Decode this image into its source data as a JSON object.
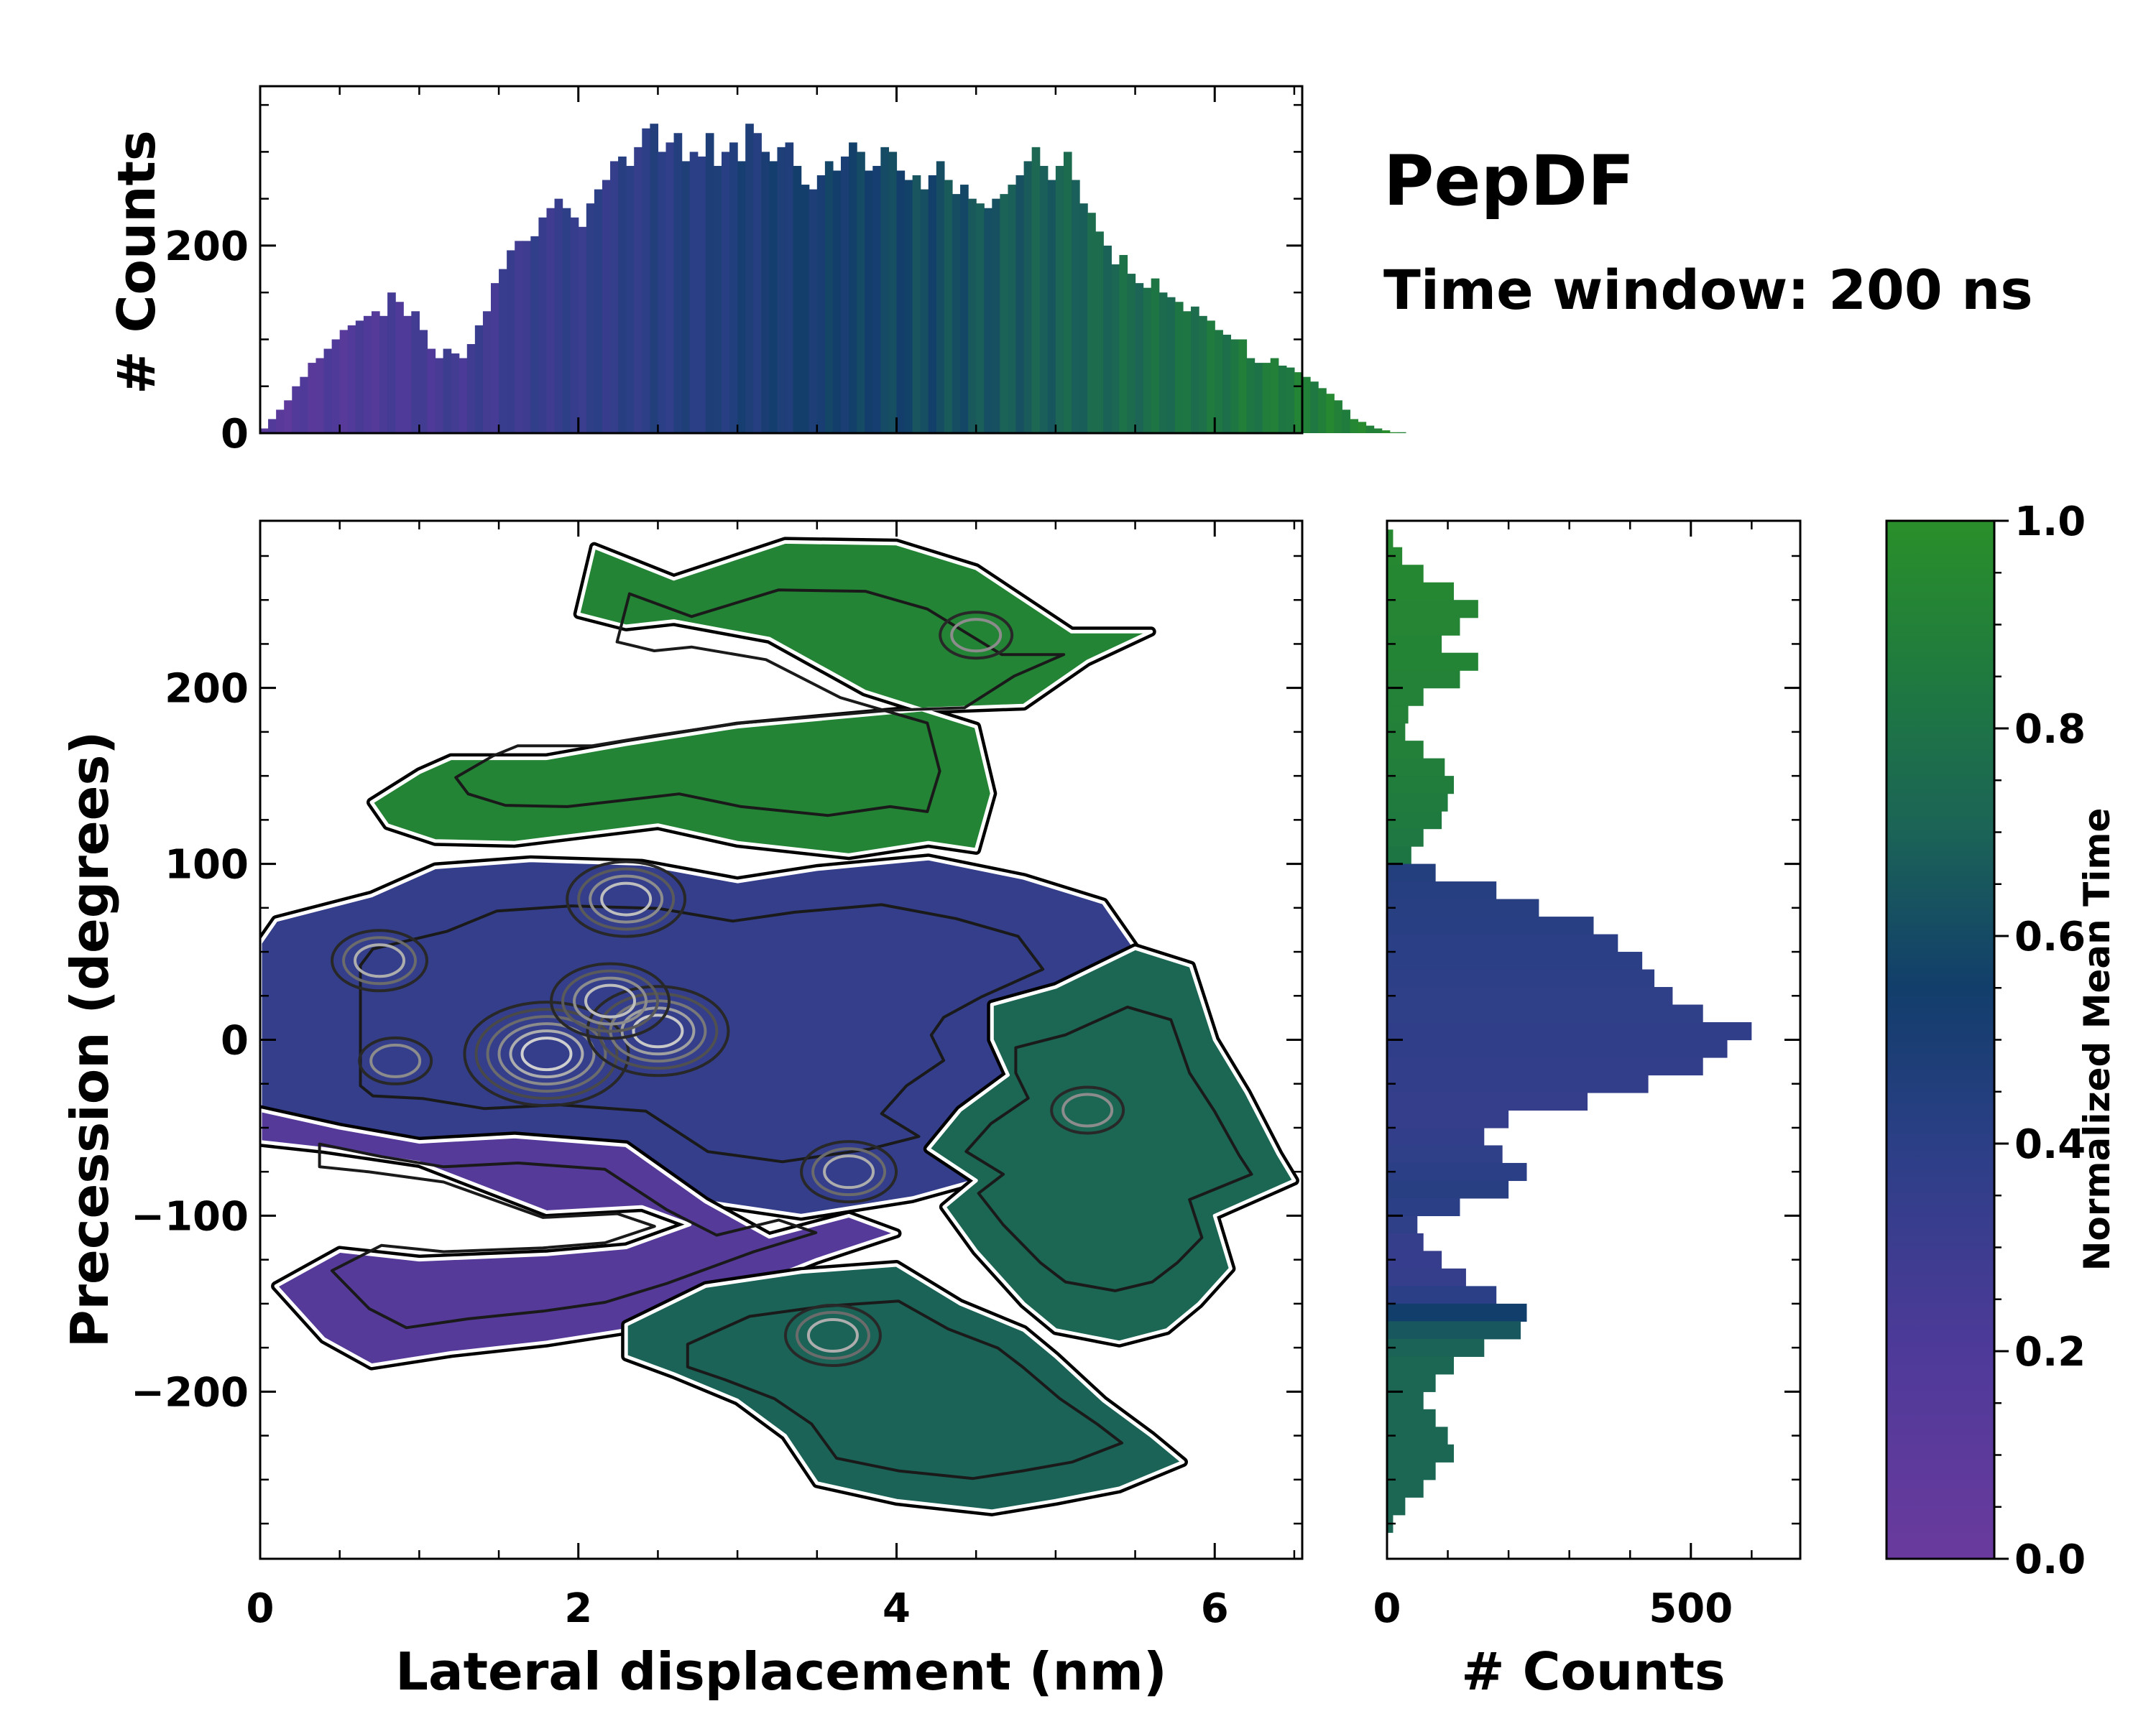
{
  "chart_data": {
    "type": "heatmap",
    "title": "PepDF",
    "subtitle": "Time window: 200 ns",
    "main": {
      "xlabel": "Lateral displacement (nm)",
      "ylabel": "Precession (degrees)",
      "xlim": [
        0,
        6.55
      ],
      "ylim": [
        -295,
        295
      ],
      "xticks": [
        0,
        2,
        4,
        6
      ],
      "yticks": [
        -200,
        -100,
        0,
        100,
        200
      ],
      "ytick_labels": [
        "−200",
        "−100",
        "0",
        "100",
        "200"
      ],
      "regions": [
        {
          "name": "upper-green",
          "mean_time": 0.92,
          "polygon": [
            [
              2.1,
              280
            ],
            [
              2.6,
              262
            ],
            [
              3.3,
              283
            ],
            [
              4.0,
              282
            ],
            [
              4.5,
              268
            ],
            [
              5.1,
              232
            ],
            [
              5.6,
              232
            ],
            [
              5.2,
              215
            ],
            [
              4.8,
              190
            ],
            [
              4.2,
              188
            ],
            [
              3.6,
              183
            ],
            [
              3.0,
              178
            ],
            [
              2.3,
              168
            ],
            [
              1.8,
              160
            ],
            [
              1.2,
              160
            ],
            [
              1.0,
              152
            ],
            [
              0.7,
              135
            ],
            [
              0.8,
              122
            ],
            [
              1.1,
              113
            ],
            [
              1.6,
              112
            ],
            [
              2.5,
              122
            ],
            [
              3.0,
              112
            ],
            [
              3.7,
              105
            ],
            [
              4.2,
              112
            ],
            [
              4.5,
              108
            ],
            [
              4.6,
              140
            ],
            [
              4.5,
              178
            ],
            [
              3.8,
              198
            ],
            [
              3.2,
              228
            ],
            [
              2.6,
              238
            ],
            [
              2.3,
              235
            ],
            [
              2.0,
              242
            ]
          ]
        },
        {
          "name": "middle-blue",
          "mean_time": 0.35,
          "polygon": [
            [
              0.0,
              55
            ],
            [
              0.1,
              68
            ],
            [
              0.7,
              82
            ],
            [
              1.1,
              98
            ],
            [
              1.7,
              102
            ],
            [
              2.4,
              100
            ],
            [
              3.0,
              90
            ],
            [
              3.5,
              97
            ],
            [
              4.2,
              103
            ],
            [
              4.8,
              92
            ],
            [
              5.3,
              78
            ],
            [
              5.5,
              52
            ],
            [
              5.0,
              30
            ],
            [
              4.7,
              14
            ],
            [
              4.6,
              0
            ],
            [
              4.7,
              -20
            ],
            [
              4.4,
              -40
            ],
            [
              4.2,
              -62
            ],
            [
              4.5,
              -80
            ],
            [
              4.1,
              -90
            ],
            [
              3.4,
              -100
            ],
            [
              2.8,
              -92
            ],
            [
              2.3,
              -60
            ],
            [
              1.6,
              -55
            ],
            [
              1.0,
              -58
            ],
            [
              0.5,
              -50
            ],
            [
              0.1,
              -48
            ],
            [
              0.0,
              -40
            ]
          ]
        },
        {
          "name": "lower-purple",
          "mean_time": 0.15,
          "polygon": [
            [
              0.0,
              -40
            ],
            [
              0.5,
              -50
            ],
            [
              1.0,
              -58
            ],
            [
              1.6,
              -55
            ],
            [
              2.3,
              -60
            ],
            [
              2.8,
              -92
            ],
            [
              3.2,
              -112
            ],
            [
              3.7,
              -100
            ],
            [
              4.0,
              -110
            ],
            [
              3.5,
              -125
            ],
            [
              2.8,
              -150
            ],
            [
              2.3,
              -165
            ],
            [
              1.8,
              -172
            ],
            [
              1.2,
              -178
            ],
            [
              0.7,
              -185
            ],
            [
              0.4,
              -170
            ],
            [
              0.1,
              -140
            ],
            [
              0.5,
              -120
            ],
            [
              1.0,
              -125
            ],
            [
              1.8,
              -122
            ],
            [
              2.3,
              -118
            ],
            [
              2.7,
              -105
            ],
            [
              2.4,
              -95
            ],
            [
              1.8,
              -98
            ],
            [
              1.0,
              -70
            ],
            [
              0.4,
              -62
            ],
            [
              0.0,
              -58
            ]
          ]
        },
        {
          "name": "lower-teal",
          "mean_time": 0.7,
          "polygon": [
            [
              2.3,
              -162
            ],
            [
              2.8,
              -140
            ],
            [
              3.4,
              -132
            ],
            [
              4.0,
              -128
            ],
            [
              4.4,
              -150
            ],
            [
              4.8,
              -165
            ],
            [
              5.0,
              -180
            ],
            [
              5.3,
              -205
            ],
            [
              5.6,
              -225
            ],
            [
              5.8,
              -240
            ],
            [
              5.4,
              -255
            ],
            [
              5.0,
              -262
            ],
            [
              4.6,
              -268
            ],
            [
              4.0,
              -262
            ],
            [
              3.5,
              -252
            ],
            [
              3.3,
              -225
            ],
            [
              3.0,
              -205
            ],
            [
              2.6,
              -190
            ],
            [
              2.3,
              -180
            ]
          ]
        },
        {
          "name": "right-teal",
          "mean_time": 0.72,
          "polygon": [
            [
              4.6,
              20
            ],
            [
              5.0,
              30
            ],
            [
              5.5,
              52
            ],
            [
              5.85,
              42
            ],
            [
              6.0,
              0
            ],
            [
              6.2,
              -30
            ],
            [
              6.4,
              -65
            ],
            [
              6.5,
              -80
            ],
            [
              6.0,
              -100
            ],
            [
              6.1,
              -130
            ],
            [
              5.9,
              -150
            ],
            [
              5.7,
              -165
            ],
            [
              5.4,
              -172
            ],
            [
              5.0,
              -165
            ],
            [
              4.8,
              -150
            ],
            [
              4.5,
              -120
            ],
            [
              4.3,
              -95
            ],
            [
              4.5,
              -80
            ],
            [
              4.2,
              -62
            ],
            [
              4.4,
              -40
            ],
            [
              4.7,
              -20
            ],
            [
              4.6,
              0
            ]
          ]
        }
      ],
      "hotspots": [
        {
          "x": 1.8,
          "y": -8,
          "peak": 1.0
        },
        {
          "x": 2.5,
          "y": 5,
          "peak": 0.85
        },
        {
          "x": 2.2,
          "y": 22,
          "peak": 0.7
        },
        {
          "x": 2.3,
          "y": 80,
          "peak": 0.6
        },
        {
          "x": 0.75,
          "y": 45,
          "peak": 0.45
        },
        {
          "x": 3.7,
          "y": -75,
          "peak": 0.55
        },
        {
          "x": 3.6,
          "y": -168,
          "peak": 0.5
        },
        {
          "x": 0.85,
          "y": -12,
          "peak": 0.4
        },
        {
          "x": 4.5,
          "y": 230,
          "peak": 0.4
        },
        {
          "x": 5.2,
          "y": -40,
          "peak": 0.35
        }
      ]
    },
    "top_histogram": {
      "ylabel": "# Counts",
      "ylim": [
        0,
        370
      ],
      "yticks": [
        0,
        200
      ],
      "bin_start": 0.0,
      "bin_width": 0.05,
      "values": [
        5,
        15,
        25,
        35,
        50,
        60,
        75,
        80,
        90,
        100,
        110,
        115,
        120,
        125,
        130,
        125,
        150,
        140,
        125,
        130,
        110,
        90,
        80,
        90,
        85,
        80,
        95,
        115,
        130,
        160,
        175,
        195,
        205,
        205,
        210,
        230,
        240,
        250,
        240,
        230,
        220,
        245,
        260,
        270,
        290,
        295,
        285,
        305,
        325,
        330,
        300,
        310,
        320,
        290,
        300,
        295,
        320,
        285,
        300,
        310,
        290,
        330,
        320,
        300,
        290,
        305,
        310,
        285,
        265,
        260,
        275,
        290,
        280,
        295,
        310,
        300,
        280,
        285,
        305,
        300,
        280,
        270,
        275,
        260,
        275,
        290,
        270,
        255,
        265,
        250,
        245,
        240,
        250,
        255,
        265,
        275,
        290,
        305,
        285,
        270,
        285,
        300,
        270,
        245,
        235,
        215,
        200,
        180,
        190,
        170,
        160,
        155,
        165,
        150,
        145,
        140,
        130,
        135,
        125,
        120,
        110,
        105,
        100,
        100,
        80,
        75,
        75,
        80,
        72,
        70,
        65,
        60,
        55,
        48,
        42,
        35,
        25,
        15,
        12,
        8,
        5,
        3,
        1,
        1
      ],
      "norm_time_start": 0.12,
      "norm_time_end": 0.95
    },
    "right_histogram": {
      "xlabel": "# Counts",
      "xlim": [
        0,
        680
      ],
      "xticks": [
        0,
        500
      ],
      "bins": [
        {
          "y": 285,
          "c": 10,
          "t": 0.95
        },
        {
          "y": 275,
          "c": 25,
          "t": 0.95
        },
        {
          "y": 265,
          "c": 60,
          "t": 0.94
        },
        {
          "y": 255,
          "c": 110,
          "t": 0.94
        },
        {
          "y": 245,
          "c": 150,
          "t": 0.93
        },
        {
          "y": 235,
          "c": 120,
          "t": 0.93
        },
        {
          "y": 225,
          "c": 90,
          "t": 0.92
        },
        {
          "y": 215,
          "c": 150,
          "t": 0.92
        },
        {
          "y": 205,
          "c": 120,
          "t": 0.91
        },
        {
          "y": 195,
          "c": 60,
          "t": 0.9
        },
        {
          "y": 185,
          "c": 35,
          "t": 0.9
        },
        {
          "y": 175,
          "c": 30,
          "t": 0.89
        },
        {
          "y": 165,
          "c": 60,
          "t": 0.89
        },
        {
          "y": 155,
          "c": 95,
          "t": 0.88
        },
        {
          "y": 145,
          "c": 110,
          "t": 0.87
        },
        {
          "y": 135,
          "c": 100,
          "t": 0.86
        },
        {
          "y": 125,
          "c": 90,
          "t": 0.85
        },
        {
          "y": 115,
          "c": 60,
          "t": 0.84
        },
        {
          "y": 105,
          "c": 40,
          "t": 0.82
        },
        {
          "y": 95,
          "c": 80,
          "t": 0.45
        },
        {
          "y": 85,
          "c": 180,
          "t": 0.43
        },
        {
          "y": 75,
          "c": 250,
          "t": 0.42
        },
        {
          "y": 65,
          "c": 340,
          "t": 0.41
        },
        {
          "y": 55,
          "c": 380,
          "t": 0.4
        },
        {
          "y": 45,
          "c": 420,
          "t": 0.4
        },
        {
          "y": 35,
          "c": 440,
          "t": 0.39
        },
        {
          "y": 25,
          "c": 470,
          "t": 0.38
        },
        {
          "y": 15,
          "c": 520,
          "t": 0.38
        },
        {
          "y": 5,
          "c": 600,
          "t": 0.37
        },
        {
          "y": -5,
          "c": 560,
          "t": 0.37
        },
        {
          "y": -15,
          "c": 520,
          "t": 0.36
        },
        {
          "y": -25,
          "c": 430,
          "t": 0.36
        },
        {
          "y": -35,
          "c": 330,
          "t": 0.35
        },
        {
          "y": -45,
          "c": 200,
          "t": 0.35
        },
        {
          "y": -55,
          "c": 160,
          "t": 0.36
        },
        {
          "y": -65,
          "c": 190,
          "t": 0.38
        },
        {
          "y": -75,
          "c": 230,
          "t": 0.4
        },
        {
          "y": -85,
          "c": 200,
          "t": 0.42
        },
        {
          "y": -95,
          "c": 120,
          "t": 0.4
        },
        {
          "y": -105,
          "c": 50,
          "t": 0.38
        },
        {
          "y": -115,
          "c": 60,
          "t": 0.35
        },
        {
          "y": -125,
          "c": 90,
          "t": 0.33
        },
        {
          "y": -135,
          "c": 130,
          "t": 0.35
        },
        {
          "y": -145,
          "c": 180,
          "t": 0.4
        },
        {
          "y": -155,
          "c": 230,
          "t": 0.55
        },
        {
          "y": -165,
          "c": 220,
          "t": 0.65
        },
        {
          "y": -175,
          "c": 160,
          "t": 0.7
        },
        {
          "y": -185,
          "c": 110,
          "t": 0.72
        },
        {
          "y": -195,
          "c": 80,
          "t": 0.72
        },
        {
          "y": -205,
          "c": 60,
          "t": 0.72
        },
        {
          "y": -215,
          "c": 80,
          "t": 0.72
        },
        {
          "y": -225,
          "c": 100,
          "t": 0.72
        },
        {
          "y": -235,
          "c": 110,
          "t": 0.72
        },
        {
          "y": -245,
          "c": 80,
          "t": 0.72
        },
        {
          "y": -255,
          "c": 60,
          "t": 0.72
        },
        {
          "y": -265,
          "c": 30,
          "t": 0.72
        },
        {
          "y": -275,
          "c": 10,
          "t": 0.72
        }
      ]
    },
    "colorbar": {
      "label": "Normalized Mean Time",
      "range": [
        0.0,
        1.0
      ],
      "ticks": [
        "0.0",
        "0.2",
        "0.4",
        "0.6",
        "0.8",
        "1.0"
      ],
      "colormap_stops": [
        {
          "v": 0.0,
          "color": "#6a3a9e"
        },
        {
          "v": 0.2,
          "color": "#4e3a99"
        },
        {
          "v": 0.4,
          "color": "#2b3f86"
        },
        {
          "v": 0.55,
          "color": "#123e6b"
        },
        {
          "v": 0.7,
          "color": "#1b6357"
        },
        {
          "v": 0.85,
          "color": "#1f7a3f"
        },
        {
          "v": 1.0,
          "color": "#2a8f2a"
        }
      ]
    }
  }
}
